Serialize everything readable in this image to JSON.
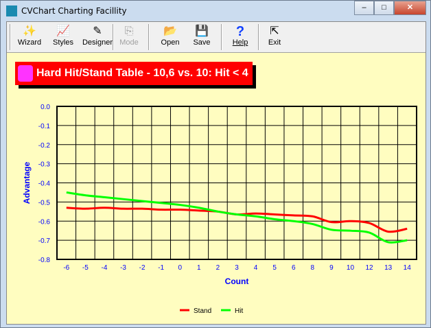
{
  "window": {
    "title": "CVChart Charting Facillity",
    "minimize": "–",
    "maximize": "□",
    "close": "✕"
  },
  "toolbar": [
    {
      "label": "Wizard",
      "icon": "wand-icon",
      "glyph": "✨",
      "enabled": true
    },
    {
      "label": "Styles",
      "icon": "chart-styles-icon",
      "glyph": "📈",
      "enabled": true
    },
    {
      "label": "Designer",
      "icon": "pen-icon",
      "glyph": "✎",
      "enabled": true
    },
    {
      "label": "Mode",
      "icon": "copy-icon",
      "glyph": "⎘",
      "enabled": false
    },
    {
      "label": "Open",
      "icon": "folder-open-icon",
      "glyph": "📂",
      "enabled": true
    },
    {
      "label": "Save",
      "icon": "floppy-icon",
      "glyph": "💾",
      "enabled": true
    },
    {
      "label": "Help",
      "icon": "help-icon",
      "glyph": "?",
      "enabled": true
    },
    {
      "label": "Exit",
      "icon": "exit-icon",
      "glyph": "⇱",
      "enabled": true
    }
  ],
  "chart_data": {
    "type": "line",
    "title": "Hard Hit/Stand Table - 10,6 vs. 10: Hit < 4",
    "xlabel": "Count",
    "ylabel": "Advantage",
    "ylim": [
      -0.8,
      0.0
    ],
    "yticks": [
      "0.0",
      "-0.1",
      "-0.2",
      "-0.3",
      "-0.4",
      "-0.5",
      "-0.6",
      "-0.7",
      "-0.8"
    ],
    "categories": [
      "-6",
      "-5",
      "-4",
      "-3",
      "-2",
      "-1",
      "0",
      "1",
      "2",
      "3",
      "4",
      "5",
      "6",
      "8",
      "9",
      "10",
      "12",
      "13",
      "14"
    ],
    "grid": true,
    "legend": "bottom",
    "series": [
      {
        "name": "Stand",
        "color": "#ff0000",
        "values": [
          -0.53,
          -0.535,
          -0.53,
          -0.535,
          -0.535,
          -0.54,
          -0.54,
          -0.545,
          -0.55,
          -0.565,
          -0.56,
          -0.565,
          -0.57,
          -0.575,
          -0.605,
          -0.6,
          -0.61,
          -0.655,
          -0.64
        ]
      },
      {
        "name": "Hit",
        "color": "#00ff00",
        "values": [
          -0.45,
          -0.465,
          -0.475,
          -0.485,
          -0.495,
          -0.505,
          -0.515,
          -0.53,
          -0.55,
          -0.565,
          -0.575,
          -0.59,
          -0.6,
          -0.615,
          -0.645,
          -0.65,
          -0.66,
          -0.71,
          -0.7
        ]
      }
    ]
  }
}
